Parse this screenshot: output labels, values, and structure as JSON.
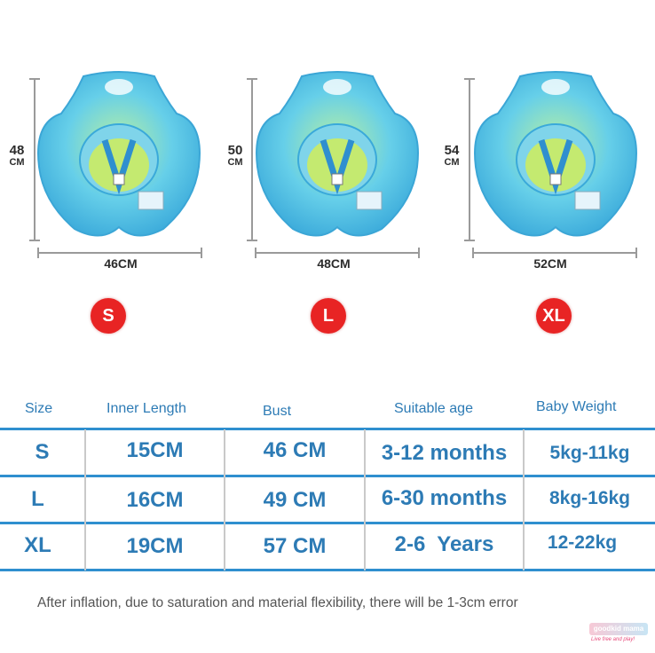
{
  "products": [
    {
      "size": "S",
      "height": "48",
      "height_unit": "CM",
      "width": "46CM",
      "product_icon": "baby-swim-float"
    },
    {
      "size": "L",
      "height": "50",
      "height_unit": "CM",
      "width": "48CM",
      "product_icon": "baby-swim-float"
    },
    {
      "size": "XL",
      "height": "54",
      "height_unit": "CM",
      "width": "52CM",
      "product_icon": "baby-swim-float"
    }
  ],
  "colors": {
    "float_blue": "#5cc4ea",
    "float_green": "#9ee36e",
    "badge_red": "#e82424",
    "table_text": "#2d7bb5",
    "table_rule": "#2f8fcf"
  },
  "table": {
    "headers": [
      "Size",
      "Inner Length",
      "Bust",
      "Suitable age",
      "Baby Weight"
    ],
    "rows": [
      [
        "S",
        "15CM",
        "46 CM",
        "3-12 months",
        "5kg-11kg"
      ],
      [
        "L",
        "16CM",
        "49 CM",
        "6-30 months",
        "8kg-16kg"
      ],
      [
        "XL",
        "19CM",
        "57 CM",
        "2-6  Years",
        "12-22kg"
      ]
    ]
  },
  "note": "After inflation, due to saturation and material flexibility, there will be 1-3cm error",
  "watermark": {
    "brand": "goodkid mama",
    "tagline": "Live free and play!"
  }
}
